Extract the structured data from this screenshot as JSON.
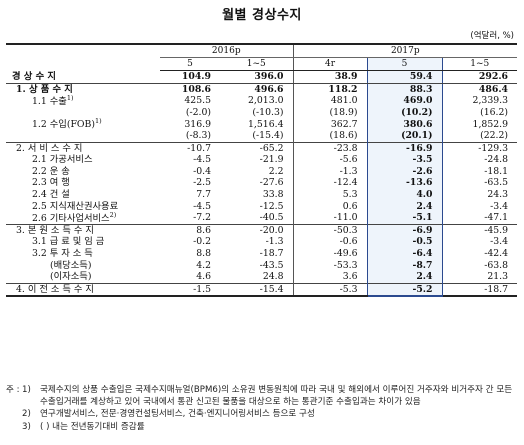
{
  "title": "월별 경상수지",
  "unit": "(억달러, %)",
  "header": {
    "group_2016": "2016p",
    "group_2017": "2017p",
    "cols": [
      "5",
      "1~5",
      "4r",
      "5",
      "1~5"
    ]
  },
  "rows": [
    {
      "label": "경 상 수 지",
      "v": [
        "104.9",
        "396.0",
        "38.9",
        "59.4",
        "292.6"
      ]
    },
    {
      "label": "1. 상 품 수 지",
      "v": [
        "108.6",
        "496.6",
        "118.2",
        "88.3",
        "486.4"
      ]
    },
    {
      "label": "1.1 수출",
      "sup": "1)",
      "v": [
        "425.5",
        "2,013.0",
        "481.0",
        "469.0",
        "2,339.3"
      ]
    },
    {
      "label": "",
      "v": [
        "(-2.0)",
        "(-10.3)",
        "(18.9)",
        "(10.2)",
        "(16.2)"
      ]
    },
    {
      "label": "1.2 수입(FOB)",
      "sup": "1)",
      "v": [
        "316.9",
        "1,516.4",
        "362.7",
        "380.6",
        "1,852.9"
      ]
    },
    {
      "label": "",
      "v": [
        "(-8.3)",
        "(-15.4)",
        "(18.6)",
        "(20.1)",
        "(22.2)"
      ]
    },
    {
      "label": "2. 서 비 스 수 지",
      "v": [
        "-10.7",
        "-65.2",
        "-23.8",
        "-16.9",
        "-129.3"
      ]
    },
    {
      "label": "2.1 가공서비스",
      "v": [
        "-4.5",
        "-21.9",
        "-5.6",
        "-3.5",
        "-24.8"
      ]
    },
    {
      "label": "2.2 운 송",
      "v": [
        "-0.4",
        "2.2",
        "-1.3",
        "-2.6",
        "-18.1"
      ]
    },
    {
      "label": "2.3 여 행",
      "v": [
        "-2.5",
        "-27.6",
        "-12.4",
        "-13.6",
        "-63.5"
      ]
    },
    {
      "label": "2.4 건 설",
      "v": [
        "7.7",
        "33.8",
        "5.3",
        "4.0",
        "24.3"
      ]
    },
    {
      "label": "2.5 지식재산권사용료",
      "v": [
        "-4.5",
        "-12.5",
        "0.6",
        "2.4",
        "-3.4"
      ]
    },
    {
      "label": "2.6 기타사업서비스",
      "sup": "2)",
      "v": [
        "-7.2",
        "-40.5",
        "-11.0",
        "-5.1",
        "-47.1"
      ]
    },
    {
      "label": "3. 본 원 소 득 수 지",
      "v": [
        "8.6",
        "-20.0",
        "-50.3",
        "-6.9",
        "-45.9"
      ]
    },
    {
      "label": "3.1 급 료 및 임 금",
      "v": [
        "-0.2",
        "-1.3",
        "-0.6",
        "-0.5",
        "-3.4"
      ]
    },
    {
      "label": "3.2 투 자 소 득",
      "v": [
        "8.8",
        "-18.7",
        "-49.6",
        "-6.4",
        "-42.4"
      ]
    },
    {
      "label": "(배당소득)",
      "v": [
        "4.2",
        "-43.5",
        "-53.3",
        "-8.7",
        "-63.8"
      ]
    },
    {
      "label": "(이자소득)",
      "v": [
        "4.6",
        "24.8",
        "3.6",
        "2.4",
        "21.3"
      ]
    },
    {
      "label": "4. 이 전 소 득 수 지",
      "v": [
        "-1.5",
        "-15.4",
        "-5.3",
        "-5.2",
        "-18.7"
      ]
    }
  ],
  "notes": {
    "key": "주 :",
    "items": [
      {
        "num": "1)",
        "text": "국제수지의 상품 수출입은 국제수지매뉴얼(BPM6)의 소유권 변동원칙에 따라 국내 및 해외에서 이루어진 거주자와 비거주자 간 모든 수출입거래를 계상하고 있어 국내에서 통관 신고된 물품을 대상으로 하는 통관기준 수출입과는 차이가 있음"
      },
      {
        "num": "2)",
        "text": "연구개발서비스, 전문·경영컨설팅서비스, 건축·엔지니어링서비스 등으로 구성"
      },
      {
        "num": "3)",
        "text": "( ) 내는 전년동기대비 증감률"
      }
    ]
  }
}
